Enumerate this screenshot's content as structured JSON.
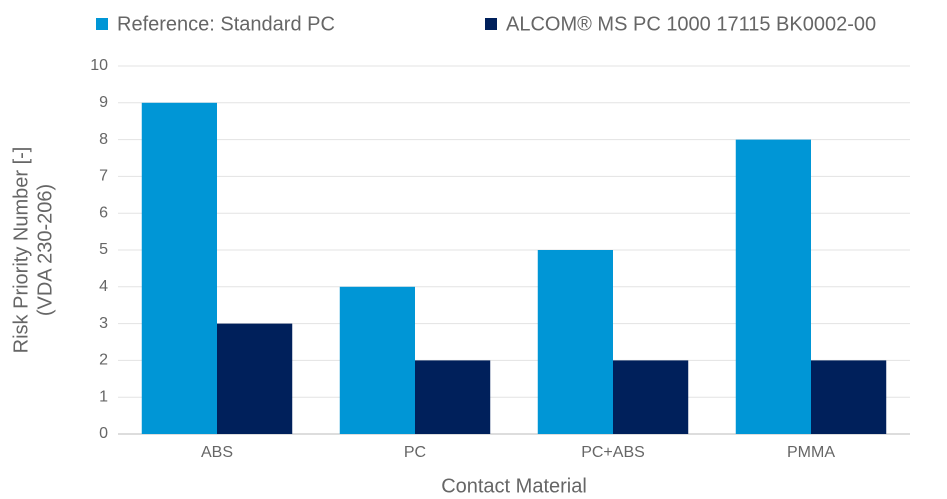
{
  "chart_data": {
    "type": "bar",
    "categories": [
      "ABS",
      "PC",
      "PC+ABS",
      "PMMA"
    ],
    "series": [
      {
        "name": "Reference: Standard PC",
        "color": "#0096d6",
        "values": [
          9,
          4,
          5,
          8
        ]
      },
      {
        "name": "ALCOM® MS PC 1000 17115 BK0002-00",
        "color": "#00205b",
        "values": [
          3,
          2,
          2,
          2
        ]
      }
    ],
    "ylabel": [
      "Risk Priority Number [-]",
      "(VDA 230-206)"
    ],
    "xlabel": "Contact Material",
    "ylim": [
      0,
      10
    ],
    "yticks": [
      0,
      1,
      2,
      3,
      4,
      5,
      6,
      7,
      8,
      9,
      10
    ],
    "grid": true,
    "legend": "top"
  }
}
